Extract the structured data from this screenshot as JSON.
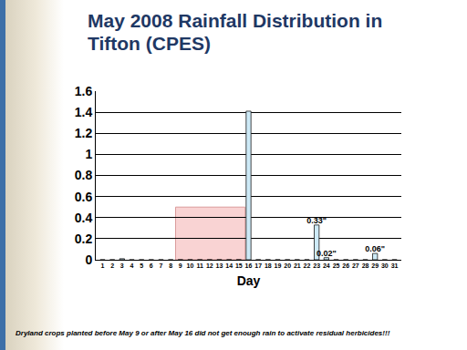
{
  "chart_data": {
    "type": "bar",
    "title": "May 2008 Rainfall Distribution in Tifton (CPES)",
    "x_label": "Day",
    "note": "Dryland crops planted before May 9 or after May 16 did not get enough rain to activate residual herbicides!!!",
    "categories": [
      "1",
      "2",
      "3",
      "4",
      "5",
      "6",
      "7",
      "8",
      "9",
      "10",
      "11",
      "12",
      "13",
      "14",
      "15",
      "16",
      "17",
      "18",
      "19",
      "20",
      "21",
      "22",
      "23",
      "24",
      "25",
      "26",
      "27",
      "28",
      "29",
      "30",
      "31"
    ],
    "values": [
      0,
      0,
      0.01,
      0,
      0,
      0,
      0,
      0,
      0,
      0,
      0,
      0,
      0,
      0,
      0,
      1.41,
      0,
      0,
      0,
      0,
      0,
      0,
      0.33,
      0.02,
      0,
      0,
      0,
      0,
      0.06,
      0,
      0
    ],
    "value_labels": [
      null,
      null,
      null,
      null,
      null,
      null,
      null,
      null,
      null,
      null,
      null,
      null,
      null,
      null,
      null,
      null,
      null,
      null,
      null,
      null,
      null,
      null,
      "0.33\"",
      "0.02\"",
      null,
      null,
      null,
      null,
      "0.06\"",
      null,
      null
    ],
    "data_labels": true,
    "color": "#cdeaf7",
    "highlight": {
      "from": "9",
      "to": "16",
      "height": 0.5,
      "color": "#f9d3d3"
    },
    "ylim": [
      0,
      1.6
    ],
    "yticks": [
      0,
      0.2,
      0.4,
      0.6,
      0.8,
      1,
      1.2,
      1.4,
      1.6
    ],
    "grid": true
  }
}
